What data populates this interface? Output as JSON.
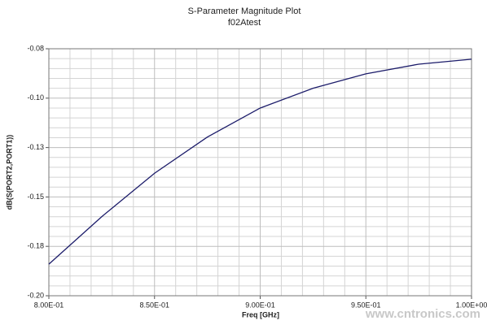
{
  "chart_data": {
    "type": "line",
    "title": "S-Parameter Magnitude Plot",
    "subtitle": "f02Atest",
    "x_label": "Freq [GHz]",
    "y_label": "dB(S(PORT2,PORT1))",
    "watermark": "www.cntronics.com",
    "x": [
      0.8,
      0.825,
      0.85,
      0.875,
      0.9,
      0.925,
      0.95,
      0.975,
      1.0
    ],
    "series": [
      {
        "name": "dB(S(PORT2,PORT1))",
        "color": "#1c1c6a",
        "values": [
          -0.184,
          -0.16,
          -0.138,
          -0.1197,
          -0.105,
          -0.095,
          -0.0877,
          -0.0828,
          -0.0803
        ]
      }
    ],
    "xlim": [
      0.8,
      1.0
    ],
    "xticks": [
      {
        "value": 0.8,
        "label": "8.00E-01"
      },
      {
        "value": 0.85,
        "label": "8.50E-01"
      },
      {
        "value": 0.9,
        "label": "9.00E-01"
      },
      {
        "value": 0.95,
        "label": "9.50E-01"
      },
      {
        "value": 1.0,
        "label": "1.00E+00"
      }
    ],
    "ylim": [
      -0.2,
      -0.075
    ],
    "yticks": [
      {
        "value": -0.2,
        "label": "-0.20"
      },
      {
        "value": -0.175,
        "label": "-0.18"
      },
      {
        "value": -0.15,
        "label": "-0.15"
      },
      {
        "value": -0.125,
        "label": "-0.13"
      },
      {
        "value": -0.1,
        "label": "-0.10"
      },
      {
        "value": -0.075,
        "label": "-0.08"
      }
    ],
    "grid": true
  }
}
